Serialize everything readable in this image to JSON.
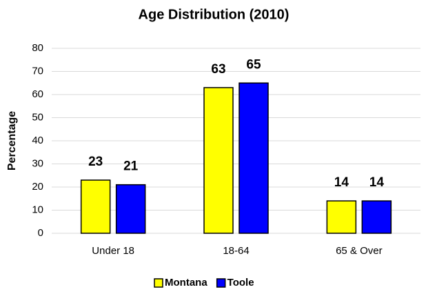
{
  "chart_data": {
    "type": "bar",
    "title": "Age Distribution (2010)",
    "y_label": "Percentage",
    "categories": [
      "Under 18",
      "18-64",
      "65 & Over"
    ],
    "series": [
      {
        "name": "Montana",
        "color": "#ffff00",
        "values": [
          23,
          63,
          14
        ]
      },
      {
        "name": "Toole",
        "color": "#0000ff",
        "values": [
          21,
          65,
          14
        ]
      }
    ],
    "ylim": [
      0,
      80
    ],
    "yticks": [
      0,
      10,
      20,
      30,
      40,
      50,
      60,
      70,
      80
    ],
    "grid": true,
    "legend": "bottom"
  }
}
